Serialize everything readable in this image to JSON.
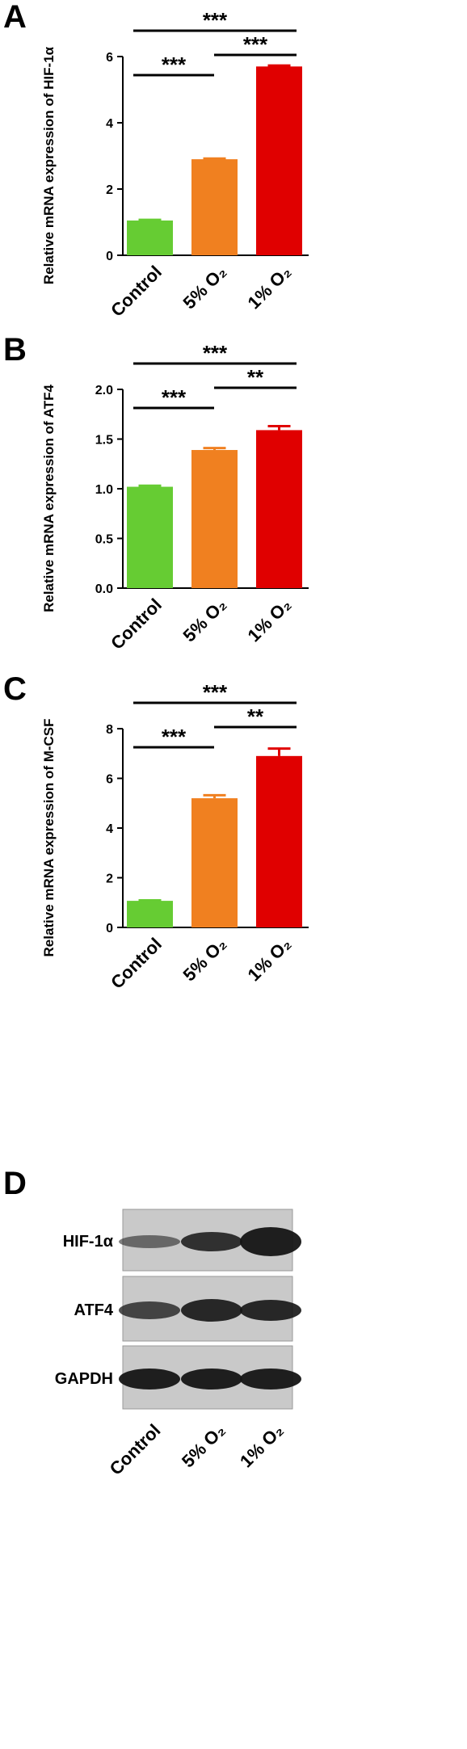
{
  "chart_data": [
    {
      "type": "bar",
      "panel": "A",
      "ylabel": "Relative mRNA expression of HIF-1α",
      "categories": [
        "Control",
        "5% O₂",
        "1% O₂"
      ],
      "values": [
        1.05,
        2.9,
        5.7
      ],
      "errors": [
        0.02,
        0.02,
        0.03
      ],
      "colors": [
        "#66cc33",
        "#f08020",
        "#e00000"
      ],
      "ylim": [
        0,
        6
      ],
      "yticks": [
        0,
        2,
        4,
        6
      ],
      "annotations": [
        {
          "text": "***",
          "pair": [
            0,
            1
          ]
        },
        {
          "text": "***",
          "pair": [
            1,
            2
          ]
        },
        {
          "text": "***",
          "pair": [
            0,
            2
          ]
        }
      ]
    },
    {
      "type": "bar",
      "panel": "B",
      "ylabel": "Relative mRNA expression of  ATF4",
      "categories": [
        "Control",
        "5% O₂",
        "1% O₂"
      ],
      "values": [
        1.02,
        1.39,
        1.59
      ],
      "errors": [
        0.01,
        0.02,
        0.04
      ],
      "colors": [
        "#66cc33",
        "#f08020",
        "#e00000"
      ],
      "ylim": [
        0,
        2
      ],
      "yticks": [
        {
          "value": 0,
          "label": "0.0"
        },
        {
          "value": 0.5,
          "label": "0.5"
        },
        {
          "value": 1,
          "label": "1.0"
        },
        {
          "value": 1.5,
          "label": "1.5"
        },
        {
          "value": 2,
          "label": "2.0"
        }
      ],
      "annotations": [
        {
          "text": "***",
          "pair": [
            0,
            1
          ]
        },
        {
          "text": "**",
          "pair": [
            1,
            2
          ]
        },
        {
          "text": "***",
          "pair": [
            0,
            2
          ]
        }
      ]
    },
    {
      "type": "bar",
      "panel": "C",
      "ylabel": "Relative mRNA expression of  M-CSF",
      "categories": [
        "Control",
        "5% O₂",
        "1% O₂"
      ],
      "values": [
        1.07,
        5.2,
        6.9
      ],
      "errors": [
        0.02,
        0.12,
        0.3
      ],
      "colors": [
        "#66cc33",
        "#f08020",
        "#e00000"
      ],
      "ylim": [
        0,
        8
      ],
      "yticks": [
        0,
        2,
        4,
        6,
        8
      ],
      "annotations": [
        {
          "text": "***",
          "pair": [
            0,
            1
          ]
        },
        {
          "text": "**",
          "pair": [
            1,
            2
          ]
        },
        {
          "text": "***",
          "pair": [
            0,
            2
          ]
        }
      ]
    }
  ],
  "blot": {
    "panel": "D",
    "rows": [
      "HIF-1α",
      "ATF4",
      "GAPDH"
    ],
    "lanes": [
      "Control",
      "5% O₂",
      "1% O₂"
    ]
  }
}
